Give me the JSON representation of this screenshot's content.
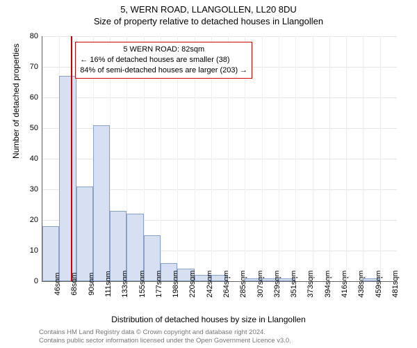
{
  "header": {
    "address": "5, WERN ROAD, LLANGOLLEN, LL20 8DU",
    "subtitle": "Size of property relative to detached houses in Llangollen"
  },
  "chart": {
    "type": "histogram-bar",
    "y_axis_label": "Number of detached properties",
    "x_axis_label": "Distribution of detached houses by size in Llangollen",
    "ylim": [
      0,
      80
    ],
    "ytick_step": 10,
    "background_color": "#ffffff",
    "grid_color_major": "#e5e5e5",
    "grid_color_minor": "#eeeeee",
    "bar_fill": "#d7dff2",
    "bar_stroke": "#8aa0c8",
    "axis_color": "#666666",
    "label_fontsize": 12,
    "tick_fontsize": 11,
    "title_fontsize": 13,
    "x_categories": [
      "46sqm",
      "68sqm",
      "90sqm",
      "111sqm",
      "133sqm",
      "155sqm",
      "177sqm",
      "198sqm",
      "220sqm",
      "242sqm",
      "264sqm",
      "285sqm",
      "307sqm",
      "329sqm",
      "351sqm",
      "373sqm",
      "394sqm",
      "416sqm",
      "438sqm",
      "459sqm",
      "481sqm"
    ],
    "bar_values": [
      18,
      67,
      31,
      51,
      23,
      22,
      15,
      6,
      4,
      2,
      2,
      0,
      1,
      1,
      1,
      0,
      0,
      0,
      0,
      1,
      0
    ],
    "marker": {
      "color": "#cc0000",
      "category_index": 1.7,
      "annot_lines": [
        "5 WERN ROAD: 82sqm",
        "← 16% of detached houses are smaller (38)",
        "84% of semi-detached houses are larger (203) →"
      ]
    }
  },
  "footer": {
    "line1": "Contains HM Land Registry data © Crown copyright and database right 2024.",
    "line2": "Contains public sector information licensed under the Open Government Licence v3.0."
  }
}
